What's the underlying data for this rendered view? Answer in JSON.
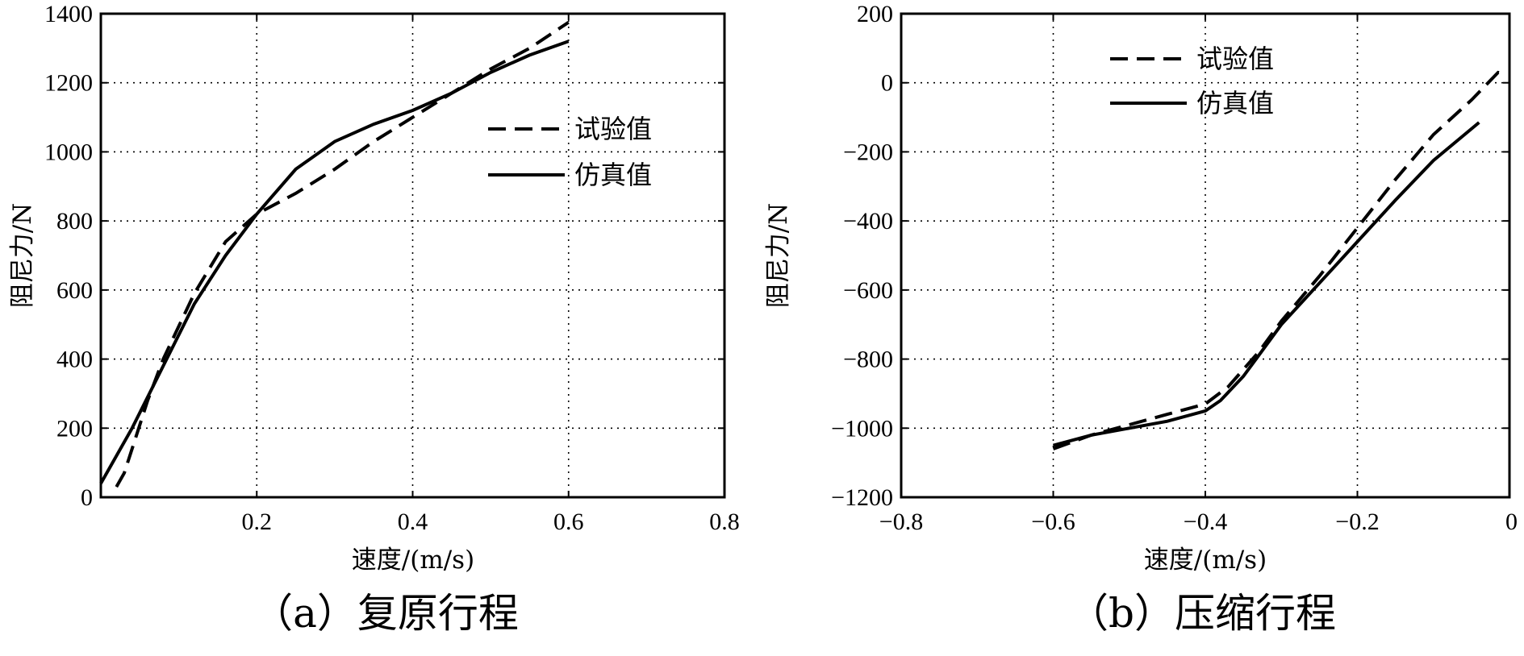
{
  "chart_data": [
    {
      "type": "line",
      "caption": "（a）复原行程",
      "xlabel": "速度/(m/s)",
      "ylabel": "阻尼力/N",
      "xlim": [
        0,
        0.8
      ],
      "ylim": [
        0,
        1400
      ],
      "xticks": [
        0.2,
        0.4,
        0.6,
        0.8
      ],
      "xtick_labels": [
        "0.2",
        "0.4",
        "0.6",
        "0.8"
      ],
      "yticks": [
        0,
        200,
        400,
        600,
        800,
        1000,
        1200,
        1400
      ],
      "ytick_labels": [
        "0",
        "200",
        "400",
        "600",
        "800",
        "1000",
        "1200",
        "1400"
      ],
      "grid": true,
      "legend_position": "right",
      "series": [
        {
          "name": "试验值",
          "style": "dashed",
          "points": [
            [
              0.02,
              30
            ],
            [
              0.03,
              70
            ],
            [
              0.04,
              140
            ],
            [
              0.06,
              280
            ],
            [
              0.08,
              400
            ],
            [
              0.12,
              590
            ],
            [
              0.16,
              740
            ],
            [
              0.2,
              820
            ],
            [
              0.25,
              880
            ],
            [
              0.3,
              950
            ],
            [
              0.35,
              1030
            ],
            [
              0.4,
              1100
            ],
            [
              0.45,
              1170
            ],
            [
              0.5,
              1240
            ],
            [
              0.55,
              1300
            ],
            [
              0.6,
              1375
            ]
          ]
        },
        {
          "name": "仿真值",
          "style": "solid",
          "points": [
            [
              0.0,
              40
            ],
            [
              0.04,
              200
            ],
            [
              0.08,
              380
            ],
            [
              0.12,
              560
            ],
            [
              0.16,
              700
            ],
            [
              0.2,
              820
            ],
            [
              0.25,
              950
            ],
            [
              0.3,
              1030
            ],
            [
              0.35,
              1080
            ],
            [
              0.4,
              1120
            ],
            [
              0.45,
              1170
            ],
            [
              0.5,
              1230
            ],
            [
              0.55,
              1280
            ],
            [
              0.6,
              1320
            ]
          ]
        }
      ]
    },
    {
      "type": "line",
      "caption": "（b）压缩行程",
      "xlabel": "速度/(m/s)",
      "ylabel": "阻尼力/N",
      "xlim": [
        -0.8,
        0
      ],
      "ylim": [
        -1200,
        200
      ],
      "xticks": [
        -0.8,
        -0.6,
        -0.4,
        -0.2,
        0
      ],
      "xtick_labels": [
        "−0.8",
        "−0.6",
        "−0.4",
        "−0.2",
        "0"
      ],
      "yticks": [
        -1200,
        -1000,
        -800,
        -600,
        -400,
        -200,
        0,
        200
      ],
      "ytick_labels": [
        "−1200",
        "−1000",
        "−800",
        "−600",
        "−400",
        "−200",
        "0",
        "200"
      ],
      "grid": true,
      "legend_position": "top-center",
      "series": [
        {
          "name": "试验值",
          "style": "dashed",
          "points": [
            [
              -0.6,
              -1060
            ],
            [
              -0.55,
              -1020
            ],
            [
              -0.5,
              -990
            ],
            [
              -0.45,
              -960
            ],
            [
              -0.4,
              -930
            ],
            [
              -0.37,
              -880
            ],
            [
              -0.33,
              -780
            ],
            [
              -0.3,
              -690
            ],
            [
              -0.25,
              -560
            ],
            [
              -0.2,
              -420
            ],
            [
              -0.15,
              -280
            ],
            [
              -0.1,
              -150
            ],
            [
              -0.05,
              -50
            ],
            [
              -0.015,
              30
            ],
            [
              -0.005,
              25
            ]
          ]
        },
        {
          "name": "仿真值",
          "style": "solid",
          "points": [
            [
              -0.6,
              -1050
            ],
            [
              -0.55,
              -1020
            ],
            [
              -0.5,
              -1000
            ],
            [
              -0.45,
              -980
            ],
            [
              -0.4,
              -950
            ],
            [
              -0.38,
              -920
            ],
            [
              -0.35,
              -850
            ],
            [
              -0.33,
              -790
            ],
            [
              -0.3,
              -700
            ],
            [
              -0.25,
              -580
            ],
            [
              -0.2,
              -460
            ],
            [
              -0.15,
              -340
            ],
            [
              -0.1,
              -225
            ],
            [
              -0.04,
              -115
            ]
          ]
        }
      ]
    }
  ]
}
